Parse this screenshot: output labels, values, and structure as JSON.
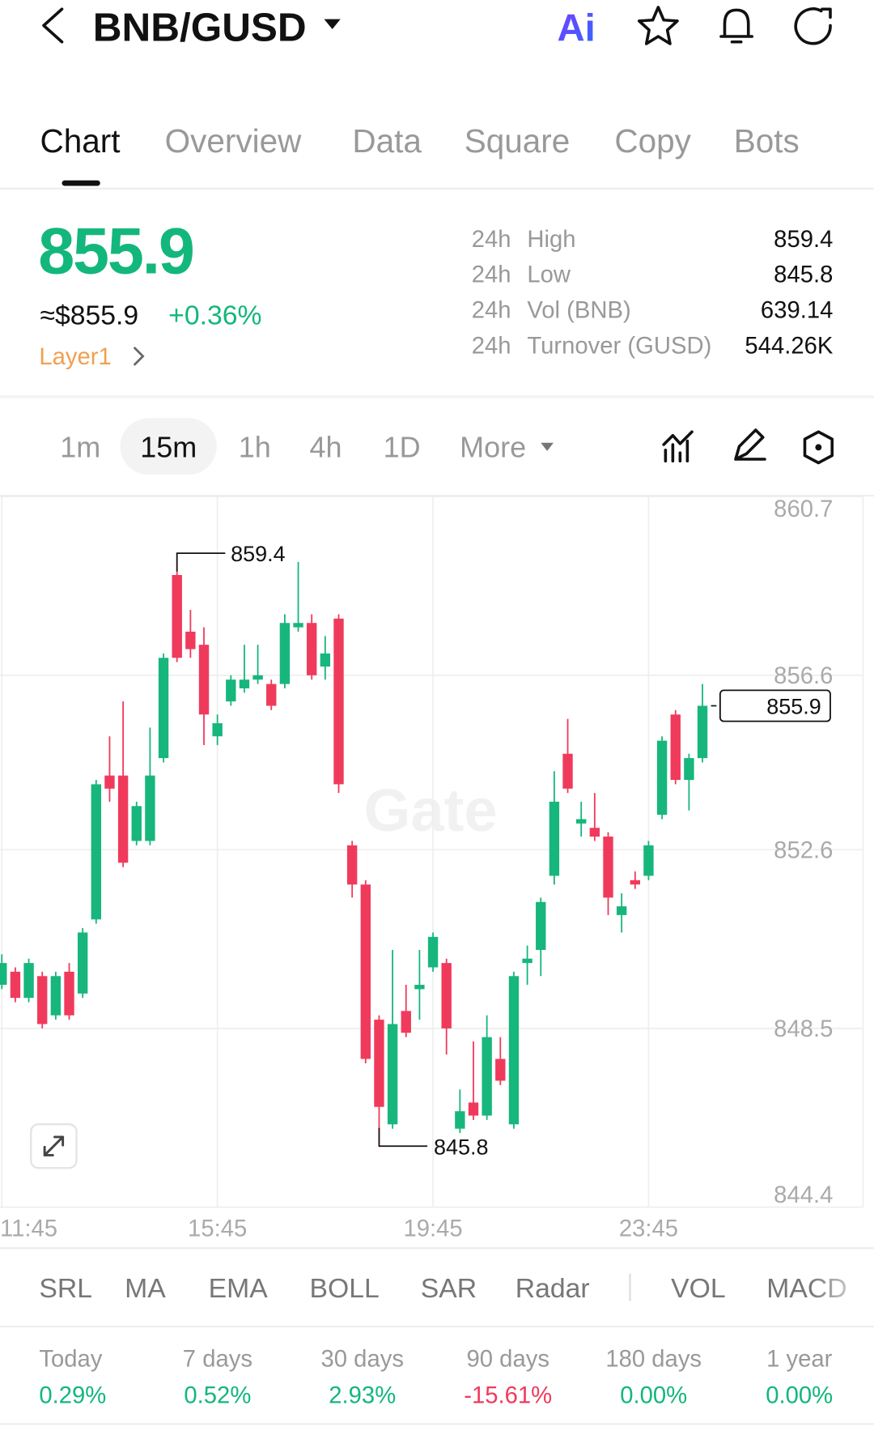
{
  "header": {
    "pair": "BNB/GUSD",
    "ai": "Ai"
  },
  "tabs": [
    "Chart",
    "Overview",
    "Data",
    "Square",
    "Copy",
    "Bots"
  ],
  "price": {
    "last": "855.9",
    "usd": "≈$855.9",
    "change": "+0.36%",
    "tag": "Layer1"
  },
  "stats": [
    {
      "period": "24h",
      "label": "High",
      "value": "859.4"
    },
    {
      "period": "24h",
      "label": "Low",
      "value": "845.8"
    },
    {
      "period": "24h",
      "label": "Vol (BNB)",
      "value": "639.14"
    },
    {
      "period": "24h",
      "label": "Turnover (GUSD)",
      "value": "544.26K"
    }
  ],
  "intervals": [
    "1m",
    "15m",
    "1h",
    "4h",
    "1D",
    "More"
  ],
  "chart_data": {
    "type": "candlestick",
    "watermark": "Gate",
    "categories": [
      "11:45",
      null,
      null,
      null,
      null,
      null,
      null,
      null,
      null,
      null,
      null,
      null,
      null,
      null,
      null,
      null,
      "15:45",
      null,
      null,
      null,
      null,
      null,
      null,
      null,
      null,
      null,
      null,
      null,
      null,
      null,
      null,
      null,
      "19:45",
      null,
      null,
      null,
      null,
      null,
      null,
      null,
      null,
      null,
      null,
      null,
      null,
      null,
      null,
      null,
      "23:45",
      null,
      null,
      null,
      null
    ],
    "open": [
      849.5,
      849.8,
      849.2,
      849.7,
      848.8,
      849.8,
      849.3,
      851.0,
      854.3,
      854.3,
      852.8,
      852.8,
      854.7,
      858.9,
      857.6,
      857.3,
      855.2,
      856.0,
      856.3,
      856.5,
      856.4,
      856.4,
      857.7,
      857.8,
      856.8,
      857.9,
      852.7,
      851.8,
      848.7,
      846.3,
      848.9,
      849.4,
      849.9,
      850.0,
      846.2,
      846.8,
      846.5,
      847.8,
      846.3,
      850.0,
      850.3,
      852.0,
      854.8,
      853.2,
      853.1,
      852.9,
      851.1,
      851.9,
      852.0,
      853.4,
      855.7,
      854.2,
      854.7
    ],
    "high": [
      850.2,
      849.9,
      850.1,
      849.8,
      849.8,
      850.0,
      850.8,
      854.2,
      855.2,
      856.0,
      853.7,
      855.4,
      857.1,
      859.4,
      858.1,
      857.7,
      855.7,
      856.6,
      857.3,
      857.3,
      856.5,
      858.0,
      859.2,
      858.0,
      857.5,
      858.0,
      852.8,
      851.9,
      848.8,
      850.3,
      849.5,
      850.3,
      850.7,
      850.1,
      847.1,
      848.2,
      848.8,
      848.3,
      849.8,
      850.4,
      851.5,
      854.4,
      855.6,
      853.7,
      853.9,
      853.0,
      851.6,
      852.1,
      852.8,
      855.2,
      855.8,
      854.8,
      856.4
    ],
    "low": [
      849.4,
      849.1,
      849.1,
      848.5,
      848.7,
      848.7,
      849.2,
      850.9,
      853.7,
      852.2,
      852.7,
      852.7,
      854.6,
      856.9,
      857.0,
      855.0,
      855.0,
      855.9,
      856.2,
      856.4,
      855.8,
      856.3,
      857.6,
      856.5,
      856.5,
      853.9,
      851.5,
      847.7,
      845.8,
      846.2,
      848.3,
      848.7,
      849.8,
      847.9,
      846.1,
      846.4,
      846.4,
      847.2,
      846.2,
      849.5,
      849.7,
      851.8,
      853.9,
      852.9,
      852.8,
      851.1,
      850.7,
      851.7,
      851.9,
      853.3,
      854.1,
      853.5,
      854.6
    ],
    "close": [
      850.0,
      849.2,
      850.0,
      848.6,
      849.7,
      848.8,
      850.7,
      854.1,
      854.0,
      852.3,
      853.6,
      854.3,
      857.0,
      857.0,
      857.2,
      855.7,
      855.5,
      856.5,
      856.5,
      856.6,
      855.9,
      857.8,
      857.8,
      856.6,
      857.1,
      854.1,
      851.8,
      847.8,
      846.7,
      848.6,
      848.4,
      849.5,
      850.6,
      848.5,
      846.6,
      846.5,
      848.3,
      847.3,
      849.7,
      850.1,
      851.4,
      853.7,
      854.0,
      853.3,
      852.9,
      851.5,
      851.3,
      851.8,
      852.7,
      855.1,
      854.2,
      854.7,
      855.9
    ],
    "up_color": "#17b67c",
    "down_color": "#f03a5c",
    "ylim": [
      844.4,
      860.7
    ],
    "yticks": [
      860.7,
      856.6,
      852.6,
      848.5,
      844.4
    ],
    "grid": true
  },
  "indicators": [
    "SRL",
    "MA",
    "EMA",
    "BOLL",
    "SAR",
    "Radar",
    "VOL",
    "MACD"
  ],
  "performance": [
    {
      "period": "Today",
      "change": "0.29%"
    },
    {
      "period": "7 days",
      "change": "0.52%"
    },
    {
      "period": "30 days",
      "change": "2.93%"
    },
    {
      "period": "90 days",
      "change": "-15.61%"
    },
    {
      "period": "180 days",
      "change": "0.00%"
    },
    {
      "period": "1 year",
      "change": "0.00%"
    }
  ]
}
